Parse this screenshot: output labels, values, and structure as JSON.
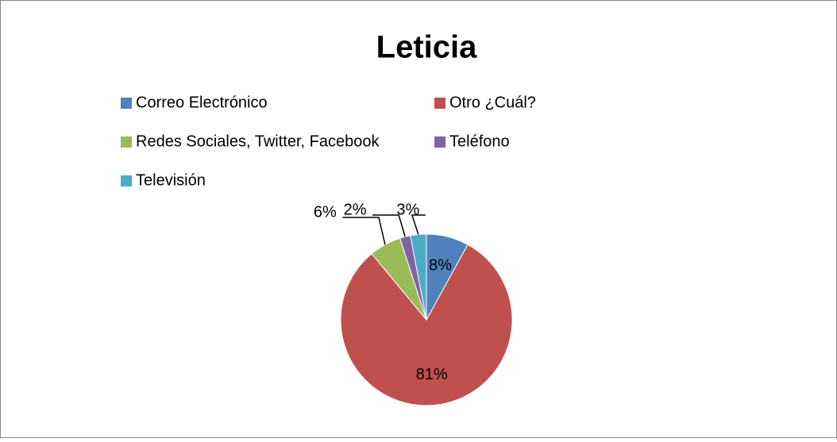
{
  "chart_data": {
    "type": "pie",
    "title": "Leticia",
    "categories": [
      "Correo Electrónico",
      "Otro ¿Cuál?",
      "Redes Sociales, Twitter, Facebook",
      "Teléfono",
      "Televisión"
    ],
    "values": [
      8,
      81,
      6,
      2,
      3
    ],
    "value_labels": [
      "8%",
      "81%",
      "6%",
      "2%",
      "3%"
    ],
    "colors": [
      "#4f81bd",
      "#c0504d",
      "#9bbb59",
      "#8064a2",
      "#4bacc6"
    ],
    "legend": "top"
  }
}
